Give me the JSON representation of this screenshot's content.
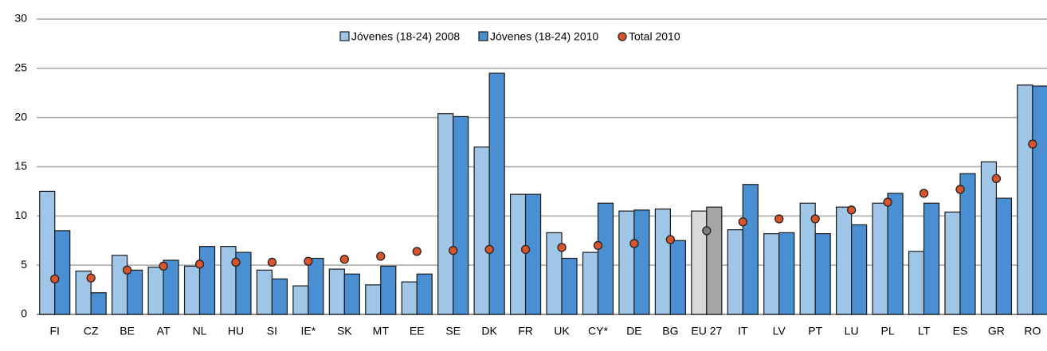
{
  "chart_data": {
    "type": "bar",
    "categories": [
      "FI",
      "CZ",
      "BE",
      "AT",
      "NL",
      "HU",
      "SI",
      "IE*",
      "SK",
      "MT",
      "EE",
      "SE",
      "DK",
      "FR",
      "UK",
      "CY*",
      "DE",
      "BG",
      "EU 27",
      "IT",
      "LV",
      "PT",
      "LU",
      "PL",
      "LT",
      "ES",
      "GR",
      "RO"
    ],
    "series": [
      {
        "name": "Jóvenes (18-24) 2008",
        "color": "#9fc6e7",
        "values": [
          12.5,
          4.4,
          6.0,
          4.8,
          4.9,
          6.9,
          4.5,
          2.9,
          4.6,
          3.0,
          3.3,
          20.4,
          17.0,
          12.2,
          8.3,
          6.3,
          10.5,
          10.7,
          10.5,
          8.6,
          8.2,
          11.3,
          10.9,
          11.3,
          6.4,
          10.4,
          15.5,
          23.3
        ]
      },
      {
        "name": "Jóvenes (18-24) 2010",
        "color": "#4a8fd1",
        "values": [
          8.5,
          2.2,
          4.5,
          5.5,
          6.9,
          6.3,
          3.6,
          5.7,
          4.1,
          4.9,
          4.1,
          20.1,
          24.5,
          12.2,
          5.7,
          11.3,
          10.6,
          7.5,
          10.9,
          13.2,
          8.3,
          8.2,
          9.1,
          12.3,
          11.3,
          14.3,
          11.8,
          23.2
        ]
      },
      {
        "name": "Total 2010",
        "type": "scatter",
        "color": "#d9532b",
        "values": [
          3.6,
          3.7,
          4.5,
          4.9,
          5.1,
          5.3,
          5.3,
          5.4,
          5.6,
          5.9,
          6.4,
          6.5,
          6.6,
          6.6,
          6.8,
          7.0,
          7.2,
          7.6,
          8.5,
          9.4,
          9.7,
          9.7,
          10.6,
          11.4,
          12.3,
          12.7,
          13.8,
          17.3
        ]
      }
    ],
    "highlight": {
      "category": "EU 27",
      "colors": [
        "#d9d9d9",
        "#a6a6a6",
        "#7f7f7f"
      ]
    },
    "ylim": [
      0,
      30
    ],
    "yticks": [
      0,
      5,
      10,
      15,
      20,
      25,
      30
    ],
    "grid": true,
    "legend": "top"
  }
}
